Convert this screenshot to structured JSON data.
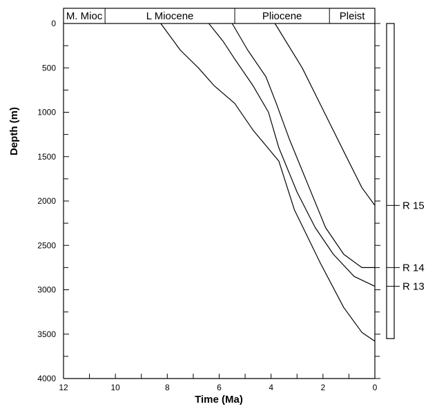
{
  "chart_data": {
    "type": "line",
    "title": "",
    "xlabel": "Time (Ma)",
    "ylabel": "Depth (m)",
    "xlim": [
      12,
      0
    ],
    "ylim": [
      0,
      4000
    ],
    "x_ticks": [
      12,
      10,
      8,
      6,
      4,
      2,
      0
    ],
    "y_ticks": [
      0,
      500,
      1000,
      1500,
      2000,
      2500,
      3000,
      3500,
      4000
    ],
    "epochs": [
      {
        "label": "M. Mioc",
        "start": 12,
        "end": 10.4
      },
      {
        "label": "L Miocene",
        "start": 10.4,
        "end": 5.4
      },
      {
        "label": "Pliocene",
        "start": 5.4,
        "end": 1.75
      },
      {
        "label": "Pleist",
        "start": 1.75,
        "end": 0
      }
    ],
    "series": [
      {
        "points": [
          [
            3.85,
            0
          ],
          [
            2.8,
            500
          ],
          [
            1.95,
            1000
          ],
          [
            1.1,
            1500
          ],
          [
            0.5,
            1850
          ],
          [
            0,
            2050
          ]
        ]
      },
      {
        "points": [
          [
            5.5,
            0
          ],
          [
            4.9,
            300
          ],
          [
            4.2,
            600
          ],
          [
            3.8,
            900
          ],
          [
            3.3,
            1300
          ],
          [
            2.6,
            1800
          ],
          [
            1.9,
            2300
          ],
          [
            1.2,
            2600
          ],
          [
            0.5,
            2750
          ],
          [
            0,
            2750
          ]
        ]
      },
      {
        "points": [
          [
            6.4,
            0
          ],
          [
            5.85,
            200
          ],
          [
            5.4,
            400
          ],
          [
            4.7,
            700
          ],
          [
            4.1,
            1000
          ],
          [
            3.7,
            1400
          ],
          [
            3.0,
            1900
          ],
          [
            2.3,
            2300
          ],
          [
            1.6,
            2600
          ],
          [
            0.8,
            2850
          ],
          [
            0,
            2960
          ]
        ]
      },
      {
        "points": [
          [
            8.25,
            0
          ],
          [
            7.5,
            300
          ],
          [
            6.8,
            500
          ],
          [
            6.2,
            700
          ],
          [
            5.4,
            900
          ],
          [
            4.7,
            1200
          ],
          [
            3.7,
            1550
          ],
          [
            3.1,
            2100
          ],
          [
            2.1,
            2700
          ],
          [
            1.2,
            3200
          ],
          [
            0.5,
            3480
          ],
          [
            0,
            3580
          ]
        ]
      }
    ],
    "well_column": {
      "top": 0,
      "bottom": 3550,
      "labels": [
        {
          "label": "R 15",
          "depth": 2050
        },
        {
          "label": "R 14",
          "depth": 2750
        },
        {
          "label": "R 13",
          "depth": 2960
        }
      ]
    }
  }
}
